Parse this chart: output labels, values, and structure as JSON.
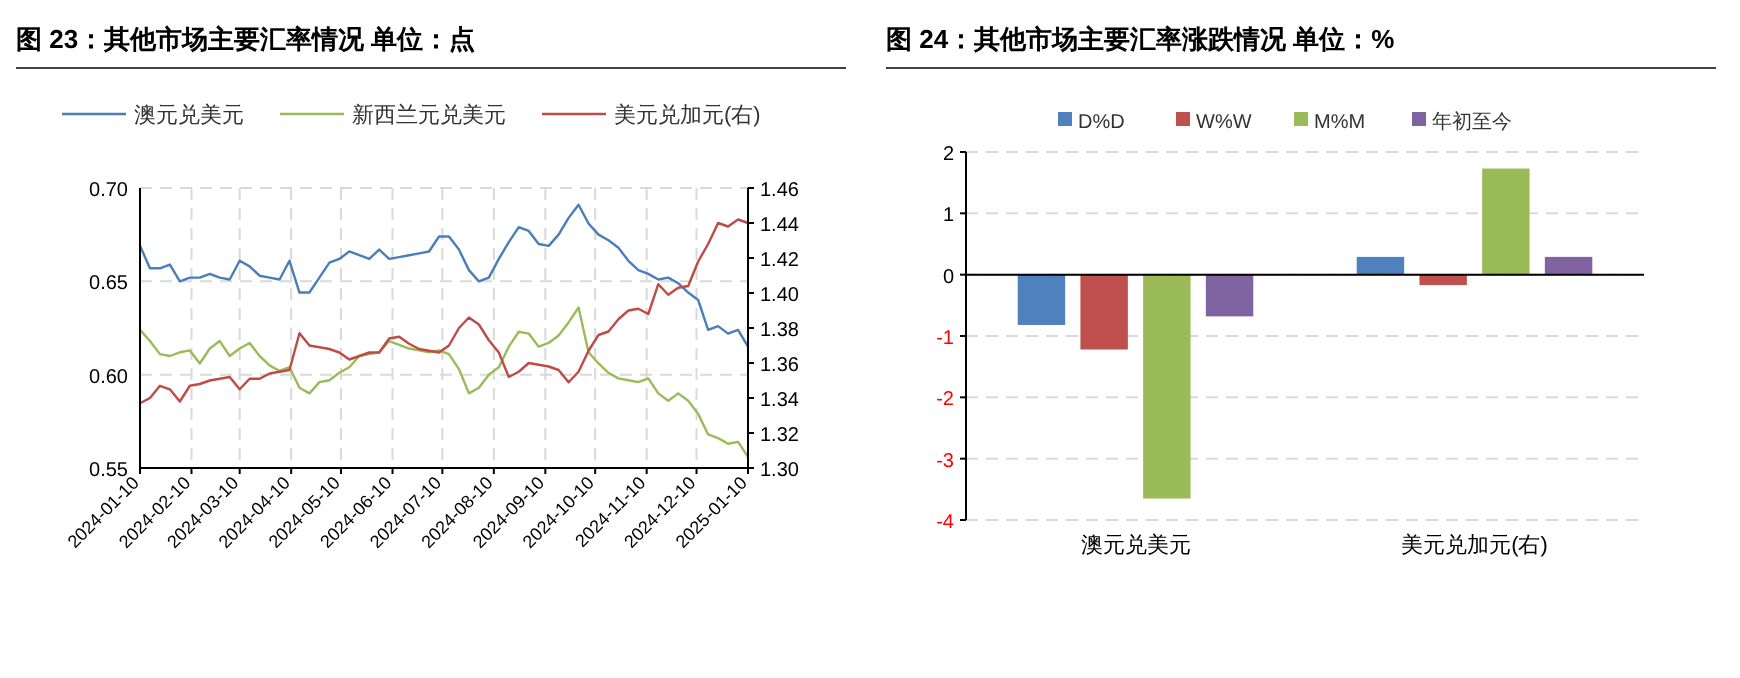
{
  "chart_data": [
    {
      "type": "line",
      "title": "图 23：其他市场主要汇率情况  单位：点",
      "legend": "top",
      "grid": true,
      "x": [
        "2024-01-10",
        "2024-01-16",
        "2024-01-22",
        "2024-01-28",
        "2024-02-03",
        "2024-02-09",
        "2024-02-15",
        "2024-02-21",
        "2024-02-27",
        "2024-03-04",
        "2024-03-10",
        "2024-03-16",
        "2024-03-22",
        "2024-03-28",
        "2024-04-03",
        "2024-04-09",
        "2024-04-15",
        "2024-04-21",
        "2024-04-27",
        "2024-05-03",
        "2024-05-09",
        "2024-05-15",
        "2024-05-21",
        "2024-05-27",
        "2024-06-02",
        "2024-06-08",
        "2024-06-14",
        "2024-06-20",
        "2024-06-26",
        "2024-07-02",
        "2024-07-08",
        "2024-07-14",
        "2024-07-20",
        "2024-07-26",
        "2024-08-01",
        "2024-08-07",
        "2024-08-13",
        "2024-08-19",
        "2024-08-25",
        "2024-08-31",
        "2024-09-06",
        "2024-09-12",
        "2024-09-18",
        "2024-09-24",
        "2024-09-30",
        "2024-10-06",
        "2024-10-12",
        "2024-10-18",
        "2024-10-24",
        "2024-10-30",
        "2024-11-05",
        "2024-11-11",
        "2024-11-17",
        "2024-11-23",
        "2024-11-29",
        "2024-12-05",
        "2024-12-11",
        "2024-12-17",
        "2024-12-23",
        "2024-12-29",
        "2025-01-04",
        "2025-01-10"
      ],
      "xlim": [
        "2024-01-10",
        "2025-01-10"
      ],
      "xticks": [
        "2024-01-10",
        "2024-02-10",
        "2024-03-10",
        "2024-04-10",
        "2024-05-10",
        "2024-06-10",
        "2024-07-10",
        "2024-08-10",
        "2024-09-10",
        "2024-10-10",
        "2024-11-10",
        "2024-12-10",
        "2025-01-10"
      ],
      "ylim": [
        0.55,
        0.7
      ],
      "yticks": [
        {
          "value": 0.55,
          "label": "0.55"
        },
        {
          "value": 0.6,
          "label": "0.60"
        },
        {
          "value": 0.65,
          "label": "0.65"
        },
        {
          "value": 0.7,
          "label": "0.70"
        }
      ],
      "y2lim": [
        1.3,
        1.46
      ],
      "y2ticks": [
        {
          "value": 1.3,
          "label": "1.30"
        },
        {
          "value": 1.32,
          "label": "1.32"
        },
        {
          "value": 1.34,
          "label": "1.34"
        },
        {
          "value": 1.36,
          "label": "1.36"
        },
        {
          "value": 1.38,
          "label": "1.38"
        },
        {
          "value": 1.4,
          "label": "1.40"
        },
        {
          "value": 1.42,
          "label": "1.42"
        },
        {
          "value": 1.44,
          "label": "1.44"
        },
        {
          "value": 1.46,
          "label": "1.46"
        }
      ],
      "series": [
        {
          "name": "澳元兑美元",
          "color": "#4a7ebb",
          "values": [
            0.669,
            0.657,
            0.657,
            0.659,
            0.65,
            0.652,
            0.652,
            0.654,
            0.652,
            0.651,
            0.661,
            0.658,
            0.653,
            0.652,
            0.651,
            0.661,
            0.644,
            0.644,
            0.652,
            0.66,
            0.662,
            0.666,
            0.664,
            0.662,
            0.667,
            0.662,
            0.663,
            0.664,
            0.665,
            0.666,
            0.674,
            0.674,
            0.667,
            0.656,
            0.65,
            0.652,
            0.662,
            0.671,
            0.679,
            0.677,
            0.67,
            0.669,
            0.675,
            0.684,
            0.691,
            0.681,
            0.675,
            0.672,
            0.668,
            0.661,
            0.656,
            0.654,
            0.651,
            0.652,
            0.649,
            0.644,
            0.64,
            0.624,
            0.626,
            0.622,
            0.624,
            0.615
          ]
        },
        {
          "name": "新西兰元兑美元",
          "color": "#9bbb59",
          "values": [
            0.624,
            0.618,
            0.611,
            0.61,
            0.612,
            0.613,
            0.606,
            0.614,
            0.618,
            0.61,
            0.614,
            0.617,
            0.61,
            0.605,
            0.602,
            0.604,
            0.593,
            0.59,
            0.596,
            0.597,
            0.601,
            0.604,
            0.61,
            0.611,
            0.612,
            0.618,
            0.616,
            0.614,
            0.613,
            0.612,
            0.613,
            0.611,
            0.603,
            0.59,
            0.593,
            0.6,
            0.604,
            0.615,
            0.623,
            0.622,
            0.615,
            0.617,
            0.621,
            0.628,
            0.636,
            0.612,
            0.606,
            0.601,
            0.598,
            0.597,
            0.596,
            0.598,
            0.59,
            0.586,
            0.59,
            0.586,
            0.579,
            0.568,
            0.566,
            0.563,
            0.564,
            0.556
          ]
        },
        {
          "name": "美元兑加元(右)",
          "color": "#be4b48",
          "axis": "y2",
          "values": [
            1.337,
            1.34,
            1.347,
            1.345,
            1.338,
            1.347,
            1.348,
            1.35,
            1.351,
            1.352,
            1.345,
            1.351,
            1.351,
            1.354,
            1.355,
            1.356,
            1.377,
            1.37,
            1.369,
            1.368,
            1.366,
            1.362,
            1.364,
            1.366,
            1.366,
            1.374,
            1.375,
            1.371,
            1.368,
            1.367,
            1.366,
            1.37,
            1.38,
            1.386,
            1.382,
            1.373,
            1.366,
            1.352,
            1.355,
            1.36,
            1.359,
            1.358,
            1.356,
            1.349,
            1.355,
            1.367,
            1.376,
            1.378,
            1.385,
            1.39,
            1.391,
            1.388,
            1.405,
            1.399,
            1.403,
            1.404,
            1.418,
            1.428,
            1.44,
            1.438,
            1.442,
            1.44
          ]
        }
      ]
    },
    {
      "type": "bar",
      "title": "图 24：其他市场主要汇率涨跌情况  单位：%",
      "legend": "top",
      "grid": "y",
      "categories": [
        "澳元兑美元",
        "美元兑加元(右)"
      ],
      "ylim": [
        -4,
        2
      ],
      "yticks": [
        -4,
        -3,
        -2,
        -1,
        0,
        1,
        2
      ],
      "series": [
        {
          "name": "D%D",
          "color": "#4f81bd",
          "values": [
            -0.82,
            0.29
          ]
        },
        {
          "name": "W%W",
          "color": "#c0504d",
          "values": [
            -1.22,
            -0.17
          ]
        },
        {
          "name": "M%M",
          "color": "#9bbb59",
          "values": [
            -3.65,
            1.73
          ]
        },
        {
          "name": "年初至今",
          "color": "#8064a2",
          "values": [
            -0.68,
            0.29
          ]
        }
      ]
    }
  ]
}
